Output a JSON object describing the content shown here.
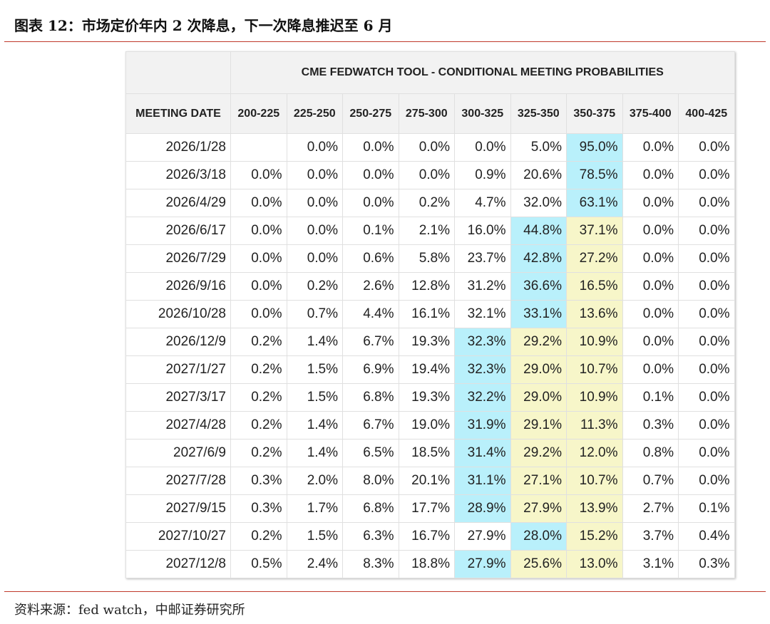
{
  "header": {
    "title": "图表 12：市场定价年内 2 次降息，下一次降息推迟至 6 月"
  },
  "table": {
    "title": "CME FEDWATCH TOOL - CONDITIONAL MEETING PROBABILITIES",
    "columns": [
      "MEETING DATE",
      "200-225",
      "225-250",
      "250-275",
      "275-300",
      "300-325",
      "325-350",
      "350-375",
      "375-400",
      "400-425"
    ],
    "colors": {
      "max": "#b9f0fb",
      "near": "#f7f6c9"
    },
    "rows": [
      {
        "cells": [
          "2026/1/28",
          null,
          "0.0%",
          "0.0%",
          "0.0%",
          "0.0%",
          "5.0%",
          "95.0%",
          "0.0%",
          "0.0%"
        ],
        "max": 7,
        "near": []
      },
      {
        "cells": [
          "2026/3/18",
          "0.0%",
          "0.0%",
          "0.0%",
          "0.0%",
          "0.9%",
          "20.6%",
          "78.5%",
          "0.0%",
          "0.0%"
        ],
        "max": 7,
        "near": []
      },
      {
        "cells": [
          "2026/4/29",
          "0.0%",
          "0.0%",
          "0.0%",
          "0.2%",
          "4.7%",
          "32.0%",
          "63.1%",
          "0.0%",
          "0.0%"
        ],
        "max": 7,
        "near": []
      },
      {
        "cells": [
          "2026/6/17",
          "0.0%",
          "0.0%",
          "0.1%",
          "2.1%",
          "16.0%",
          "44.8%",
          "37.1%",
          "0.0%",
          "0.0%"
        ],
        "max": 6,
        "near": [
          7
        ]
      },
      {
        "cells": [
          "2026/7/29",
          "0.0%",
          "0.0%",
          "0.6%",
          "5.8%",
          "23.7%",
          "42.8%",
          "27.2%",
          "0.0%",
          "0.0%"
        ],
        "max": 6,
        "near": [
          7
        ]
      },
      {
        "cells": [
          "2026/9/16",
          "0.0%",
          "0.2%",
          "2.6%",
          "12.8%",
          "31.2%",
          "36.6%",
          "16.5%",
          "0.0%",
          "0.0%"
        ],
        "max": 6,
        "near": [
          7
        ]
      },
      {
        "cells": [
          "2026/10/28",
          "0.0%",
          "0.7%",
          "4.4%",
          "16.1%",
          "32.1%",
          "33.1%",
          "13.6%",
          "0.0%",
          "0.0%"
        ],
        "max": 6,
        "near": [
          7
        ]
      },
      {
        "cells": [
          "2026/12/9",
          "0.2%",
          "1.4%",
          "6.7%",
          "19.3%",
          "32.3%",
          "29.2%",
          "10.9%",
          "0.0%",
          "0.0%"
        ],
        "max": 5,
        "near": [
          6,
          7
        ]
      },
      {
        "cells": [
          "2027/1/27",
          "0.2%",
          "1.5%",
          "6.9%",
          "19.4%",
          "32.3%",
          "29.0%",
          "10.7%",
          "0.0%",
          "0.0%"
        ],
        "max": 5,
        "near": [
          6,
          7
        ]
      },
      {
        "cells": [
          "2027/3/17",
          "0.2%",
          "1.5%",
          "6.8%",
          "19.3%",
          "32.2%",
          "29.0%",
          "10.9%",
          "0.1%",
          "0.0%"
        ],
        "max": 5,
        "near": [
          6,
          7
        ]
      },
      {
        "cells": [
          "2027/4/28",
          "0.2%",
          "1.4%",
          "6.7%",
          "19.0%",
          "31.9%",
          "29.1%",
          "11.3%",
          "0.3%",
          "0.0%"
        ],
        "max": 5,
        "near": [
          6,
          7
        ]
      },
      {
        "cells": [
          "2027/6/9",
          "0.2%",
          "1.4%",
          "6.5%",
          "18.5%",
          "31.4%",
          "29.2%",
          "12.0%",
          "0.8%",
          "0.0%"
        ],
        "max": 5,
        "near": [
          6,
          7
        ]
      },
      {
        "cells": [
          "2027/7/28",
          "0.3%",
          "2.0%",
          "8.0%",
          "20.1%",
          "31.1%",
          "27.1%",
          "10.7%",
          "0.7%",
          "0.0%"
        ],
        "max": 5,
        "near": [
          6,
          7
        ]
      },
      {
        "cells": [
          "2027/9/15",
          "0.3%",
          "1.7%",
          "6.8%",
          "17.7%",
          "28.9%",
          "27.9%",
          "13.9%",
          "2.7%",
          "0.1%"
        ],
        "max": 5,
        "near": [
          6,
          7
        ]
      },
      {
        "cells": [
          "2027/10/27",
          "0.2%",
          "1.5%",
          "6.3%",
          "16.7%",
          "27.9%",
          "28.0%",
          "15.2%",
          "3.7%",
          "0.4%"
        ],
        "max": 6,
        "near": [
          7
        ]
      },
      {
        "cells": [
          "2027/12/8",
          "0.5%",
          "2.4%",
          "8.3%",
          "18.8%",
          "27.9%",
          "25.6%",
          "13.0%",
          "3.1%",
          "0.3%"
        ],
        "max": 5,
        "near": [
          6,
          7
        ]
      }
    ]
  },
  "footer": {
    "source": "资料来源：fed watch，中邮证券研究所"
  }
}
